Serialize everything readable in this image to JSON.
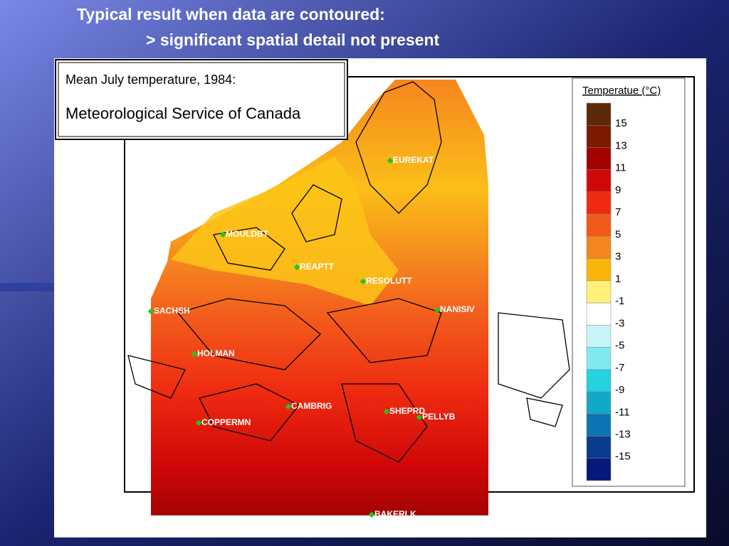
{
  "slide": {
    "title_line1": "Typical result when data are contoured:",
    "title_line2": "> significant spatial detail not present"
  },
  "map": {
    "caption_line1": "Mean July temperature, 1984:",
    "caption_line2": "Meteorological Service of Canada",
    "stations": [
      "EUREKAT",
      "MOULDBT",
      "REAPTT",
      "RESOLUTT",
      "SACHSH",
      "NANISIV",
      "HOLMAN",
      "CAMBRIG",
      "SHEPRD",
      "PELLYB",
      "COPPERMN",
      "BAKERLK"
    ]
  },
  "legend": {
    "title": "Temperatue (°C)",
    "ticks": [
      15,
      13,
      11,
      9,
      7,
      5,
      3,
      1,
      -1,
      -3,
      -5,
      -7,
      -9,
      -11,
      -13,
      -15
    ],
    "colors": [
      "#5c2a08",
      "#7d1a02",
      "#a30303",
      "#d10808",
      "#ee2a10",
      "#f25a1c",
      "#f5861e",
      "#fbb40a",
      "#fff07a",
      "#ffffff",
      "#c8f6f8",
      "#7eeaf0",
      "#24d2e0",
      "#12a8c8",
      "#0c74b0",
      "#0a3c8c",
      "#06187a"
    ]
  }
}
